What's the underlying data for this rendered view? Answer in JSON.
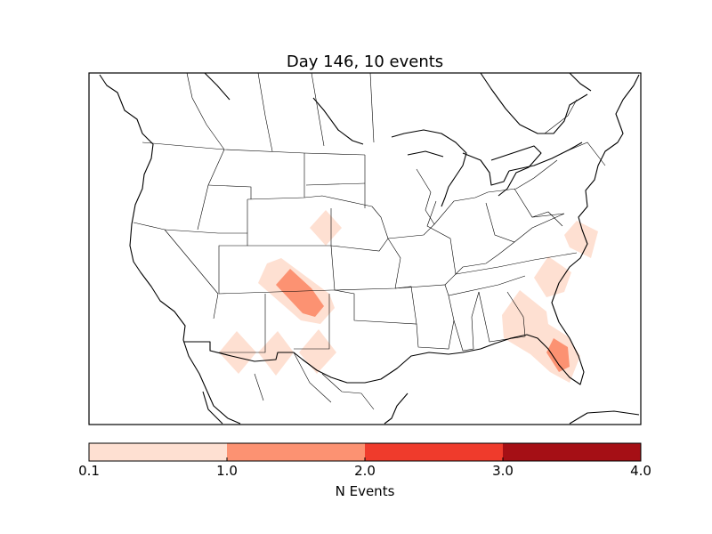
{
  "title": "Day 146, 10 events",
  "colorbar": {
    "label": "N Events",
    "ticks": [
      "0.1",
      "1.0",
      "2.0",
      "3.0",
      "4.0"
    ],
    "bins": [
      {
        "color": "#fee0d2",
        "from": 0.1,
        "to": 1.0
      },
      {
        "color": "#fc9272",
        "from": 1.0,
        "to": 2.0
      },
      {
        "color": "#ef3b2c",
        "from": 2.0,
        "to": 3.0
      },
      {
        "color": "#a50f15",
        "from": 3.0,
        "to": 4.0
      }
    ]
  },
  "map": {
    "region": "contiguous United States",
    "features": [
      "coastlines",
      "state boundaries",
      "country boundaries",
      "lakes"
    ],
    "event_areas": [
      {
        "region": "Nebraska",
        "level": 1
      },
      {
        "region": "Colorado / Kansas",
        "level": 1
      },
      {
        "region": "eastern Colorado",
        "level": 2
      },
      {
        "region": "southern Arizona",
        "level": 1
      },
      {
        "region": "southwestern New Mexico",
        "level": 1
      },
      {
        "region": "southeastern New Mexico",
        "level": 1
      },
      {
        "region": "South Carolina",
        "level": 1
      },
      {
        "region": "Virginia coast",
        "level": 1
      },
      {
        "region": "Georgia / Florida",
        "level": 1
      },
      {
        "region": "central Florida",
        "level": 2
      }
    ]
  }
}
